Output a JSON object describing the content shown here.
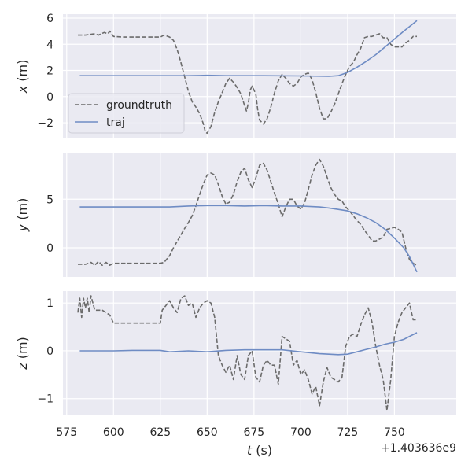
{
  "chart_data": [
    {
      "type": "line",
      "ylabel_var": "x",
      "ylabel_unit": " (m)",
      "ylim": [
        -3.2,
        6.3
      ],
      "yticks": [
        -2,
        0,
        2,
        4,
        6
      ],
      "ytick_labels": [
        "−2",
        "0",
        "2",
        "4",
        "6"
      ],
      "grid": true,
      "legend": {
        "placement": "lower-left",
        "entries": [
          "groundtruth",
          "traj"
        ]
      },
      "series": [
        {
          "name": "groundtruth",
          "style": "dashed",
          "color": "#6b6b6b",
          "x": [
            581,
            585,
            590,
            592,
            595,
            597,
            598,
            600,
            605,
            610,
            615,
            620,
            623,
            625,
            627,
            628,
            630,
            632,
            634,
            636,
            638,
            640,
            642,
            644,
            646,
            648,
            649,
            650,
            652,
            654,
            656,
            658,
            660,
            662,
            664,
            666,
            668,
            670,
            671,
            672,
            673,
            674,
            676,
            677,
            678,
            680,
            682,
            684,
            686,
            688,
            690,
            692,
            694,
            696,
            698,
            700,
            702,
            704,
            706,
            708,
            710,
            712,
            714,
            716,
            718,
            720,
            722,
            724,
            726,
            728,
            730,
            732,
            734,
            736,
            738,
            740,
            742,
            744,
            746,
            748,
            750,
            752,
            754,
            756,
            758,
            760,
            762
          ],
          "y": [
            4.7,
            4.7,
            4.8,
            4.7,
            4.9,
            4.8,
            5.0,
            4.6,
            4.55,
            4.55,
            4.55,
            4.55,
            4.55,
            4.55,
            4.7,
            4.65,
            4.55,
            4.3,
            3.6,
            2.6,
            1.5,
            0.4,
            -0.4,
            -0.8,
            -1.3,
            -2.1,
            -2.7,
            -2.8,
            -2.3,
            -1.2,
            -0.4,
            0.3,
            1.0,
            1.4,
            1.1,
            0.7,
            0.2,
            -0.7,
            -1.1,
            -0.5,
            0.5,
            0.8,
            0.2,
            -1.0,
            -1.8,
            -2.1,
            -1.7,
            -0.8,
            0.3,
            1.2,
            1.7,
            1.4,
            1.0,
            0.8,
            1.0,
            1.5,
            1.7,
            1.8,
            1.3,
            0.3,
            -0.9,
            -1.7,
            -1.7,
            -1.2,
            -0.6,
            0.2,
            1.0,
            1.7,
            2.3,
            2.6,
            3.2,
            3.7,
            4.5,
            4.6,
            4.6,
            4.7,
            4.8,
            4.5,
            4.5,
            4.0,
            3.8,
            3.8,
            3.8,
            4.1,
            4.3,
            4.6,
            4.6
          ]
        },
        {
          "name": "traj",
          "style": "solid",
          "color": "#6f8cc4",
          "x": [
            582,
            600,
            620,
            640,
            650,
            660,
            680,
            700,
            715,
            720,
            725,
            730,
            735,
            740,
            745,
            750,
            755,
            762
          ],
          "y": [
            1.6,
            1.6,
            1.6,
            1.6,
            1.63,
            1.6,
            1.6,
            1.58,
            1.55,
            1.6,
            1.85,
            2.25,
            2.7,
            3.2,
            3.8,
            4.4,
            5.0,
            5.8
          ]
        }
      ]
    },
    {
      "type": "line",
      "ylabel_var": "y",
      "ylabel_unit": " (m)",
      "ylim": [
        -3.0,
        9.8
      ],
      "yticks": [
        0,
        5
      ],
      "ytick_labels": [
        "0",
        "5"
      ],
      "grid": true,
      "series": [
        {
          "name": "groundtruth",
          "style": "dashed",
          "color": "#6b6b6b",
          "x": [
            581,
            585,
            588,
            590,
            592,
            594,
            596,
            598,
            600,
            605,
            610,
            615,
            620,
            625,
            627,
            630,
            632,
            635,
            638,
            640,
            642,
            644,
            646,
            648,
            650,
            652,
            654,
            656,
            658,
            660,
            662,
            664,
            666,
            668,
            670,
            672,
            674,
            676,
            678,
            680,
            682,
            684,
            686,
            688,
            690,
            692,
            694,
            696,
            698,
            700,
            702,
            704,
            706,
            708,
            710,
            712,
            714,
            716,
            718,
            720,
            722,
            724,
            726,
            728,
            730,
            732,
            734,
            736,
            738,
            740,
            742,
            744,
            746,
            748,
            750,
            752,
            754,
            756,
            758,
            760,
            762
          ],
          "y": [
            -1.7,
            -1.7,
            -1.5,
            -1.8,
            -1.4,
            -1.8,
            -1.5,
            -1.8,
            -1.6,
            -1.6,
            -1.6,
            -1.6,
            -1.6,
            -1.6,
            -1.5,
            -0.8,
            0.0,
            1.0,
            2.0,
            2.6,
            3.3,
            4.3,
            5.5,
            6.6,
            7.5,
            7.7,
            7.5,
            6.5,
            5.3,
            4.5,
            4.7,
            5.5,
            6.8,
            7.8,
            8.2,
            7.0,
            6.2,
            7.2,
            8.5,
            8.7,
            8.0,
            6.8,
            5.6,
            4.5,
            3.2,
            4.2,
            5.0,
            5.0,
            4.3,
            4.0,
            4.6,
            6.0,
            7.5,
            8.5,
            9.1,
            8.4,
            7.3,
            6.2,
            5.5,
            5.0,
            4.8,
            4.2,
            3.8,
            3.3,
            2.8,
            2.4,
            1.8,
            1.3,
            0.7,
            0.7,
            0.9,
            1.1,
            1.9,
            2.0,
            2.1,
            1.9,
            1.6,
            0.0,
            -1.2,
            -1.6,
            -1.8
          ]
        },
        {
          "name": "traj",
          "style": "solid",
          "color": "#6f8cc4",
          "x": [
            582,
            600,
            620,
            630,
            640,
            650,
            660,
            670,
            680,
            690,
            700,
            710,
            715,
            720,
            725,
            730,
            735,
            740,
            745,
            750,
            755,
            758,
            762
          ],
          "y": [
            4.2,
            4.2,
            4.2,
            4.2,
            4.3,
            4.35,
            4.35,
            4.3,
            4.35,
            4.3,
            4.3,
            4.2,
            4.1,
            3.95,
            3.8,
            3.5,
            3.1,
            2.6,
            1.9,
            1.0,
            0.0,
            -0.9,
            -2.5
          ]
        }
      ]
    },
    {
      "type": "line",
      "ylabel_var": "z",
      "ylabel_unit": " (m)",
      "ylim": [
        -1.35,
        1.25
      ],
      "yticks": [
        -1,
        0,
        1
      ],
      "ytick_labels": [
        "−1",
        "0",
        "1"
      ],
      "grid": true,
      "series": [
        {
          "name": "groundtruth",
          "style": "dashed",
          "color": "#6b6b6b",
          "x": [
            581,
            582,
            583,
            584,
            585,
            586,
            587,
            588,
            590,
            592,
            594,
            596,
            598,
            600,
            605,
            610,
            615,
            620,
            625,
            626,
            628,
            630,
            632,
            634,
            636,
            638,
            640,
            642,
            644,
            646,
            648,
            650,
            652,
            654,
            656,
            658,
            660,
            662,
            664,
            666,
            668,
            670,
            672,
            674,
            676,
            678,
            680,
            682,
            684,
            686,
            688,
            690,
            692,
            694,
            696,
            698,
            700,
            702,
            704,
            706,
            708,
            710,
            712,
            714,
            716,
            718,
            720,
            722,
            724,
            726,
            728,
            730,
            732,
            734,
            736,
            738,
            740,
            742,
            744,
            746,
            748,
            750,
            752,
            754,
            756,
            758,
            760,
            762
          ],
          "y": [
            0.8,
            1.1,
            0.7,
            1.1,
            0.9,
            1.1,
            0.8,
            1.15,
            0.85,
            0.85,
            0.85,
            0.8,
            0.75,
            0.58,
            0.58,
            0.58,
            0.58,
            0.58,
            0.58,
            0.85,
            0.95,
            1.05,
            0.9,
            0.8,
            1.1,
            1.15,
            0.95,
            1.0,
            0.7,
            0.9,
            1.0,
            1.05,
            1.0,
            0.7,
            -0.1,
            -0.3,
            -0.45,
            -0.3,
            -0.6,
            -0.1,
            -0.5,
            -0.6,
            -0.1,
            0.0,
            -0.55,
            -0.65,
            -0.3,
            -0.2,
            -0.3,
            -0.3,
            -0.7,
            0.3,
            0.25,
            0.2,
            -0.3,
            -0.2,
            -0.5,
            -0.4,
            -0.6,
            -0.9,
            -0.75,
            -1.15,
            -0.65,
            -0.35,
            -0.55,
            -0.6,
            -0.65,
            -0.55,
            0.1,
            0.3,
            0.35,
            0.3,
            0.55,
            0.75,
            0.9,
            0.6,
            0.1,
            -0.3,
            -0.6,
            -1.25,
            -0.6,
            0.3,
            0.6,
            0.8,
            0.9,
            1.0,
            0.65,
            0.65
          ]
        },
        {
          "name": "traj",
          "style": "solid",
          "color": "#6f8cc4",
          "x": [
            582,
            600,
            610,
            625,
            630,
            640,
            650,
            660,
            670,
            690,
            700,
            710,
            720,
            725,
            730,
            735,
            740,
            745,
            750,
            755,
            762
          ],
          "y": [
            0.0,
            0.0,
            0.01,
            0.01,
            -0.02,
            0.0,
            -0.02,
            0.01,
            0.02,
            0.02,
            -0.02,
            -0.06,
            -0.08,
            -0.07,
            -0.02,
            0.03,
            0.08,
            0.14,
            0.18,
            0.24,
            0.38
          ]
        }
      ]
    }
  ],
  "shared_x": {
    "xlim": [
      573,
      783
    ],
    "xticks": [
      575,
      600,
      625,
      650,
      675,
      700,
      725,
      750
    ],
    "xtick_labels": [
      "575",
      "600",
      "625",
      "650",
      "675",
      "700",
      "725",
      "750"
    ],
    "xlabel_var": "t",
    "xlabel_unit": " (s)",
    "offset": "+1.403636e9"
  },
  "colors": {
    "background": "#eaeaf2",
    "grid": "#ffffff",
    "groundtruth": "#6b6b6b",
    "traj": "#6f8cc4"
  }
}
